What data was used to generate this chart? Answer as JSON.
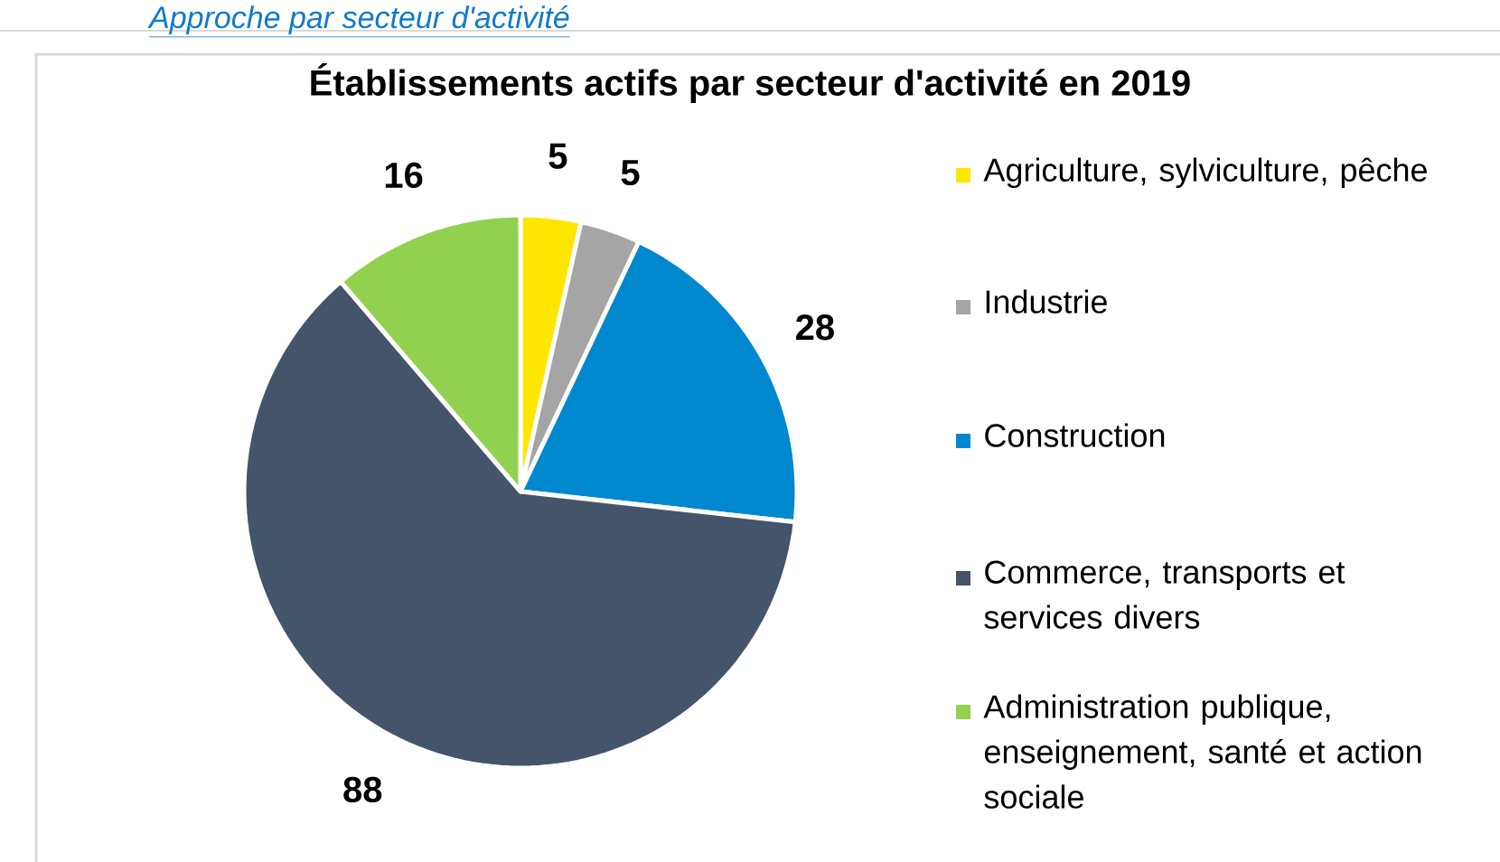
{
  "chart_data": {
    "type": "pie",
    "title": "Établissements actifs par secteur d'activité en 2019",
    "categories": [
      "Agriculture, sylviculture, pêche",
      "Industrie",
      "Construction",
      "Commerce, transports et services divers",
      "Administration publique, enseignement, santé et action sociale"
    ],
    "values": [
      5,
      5,
      28,
      88,
      16
    ],
    "colors": [
      "#ffe600",
      "#a5a5a5",
      "#0088cf",
      "#44546a",
      "#92d050"
    ],
    "data_labels": true,
    "legend": "right",
    "annotations": [
      "Approche par secteur d'activité"
    ]
  }
}
